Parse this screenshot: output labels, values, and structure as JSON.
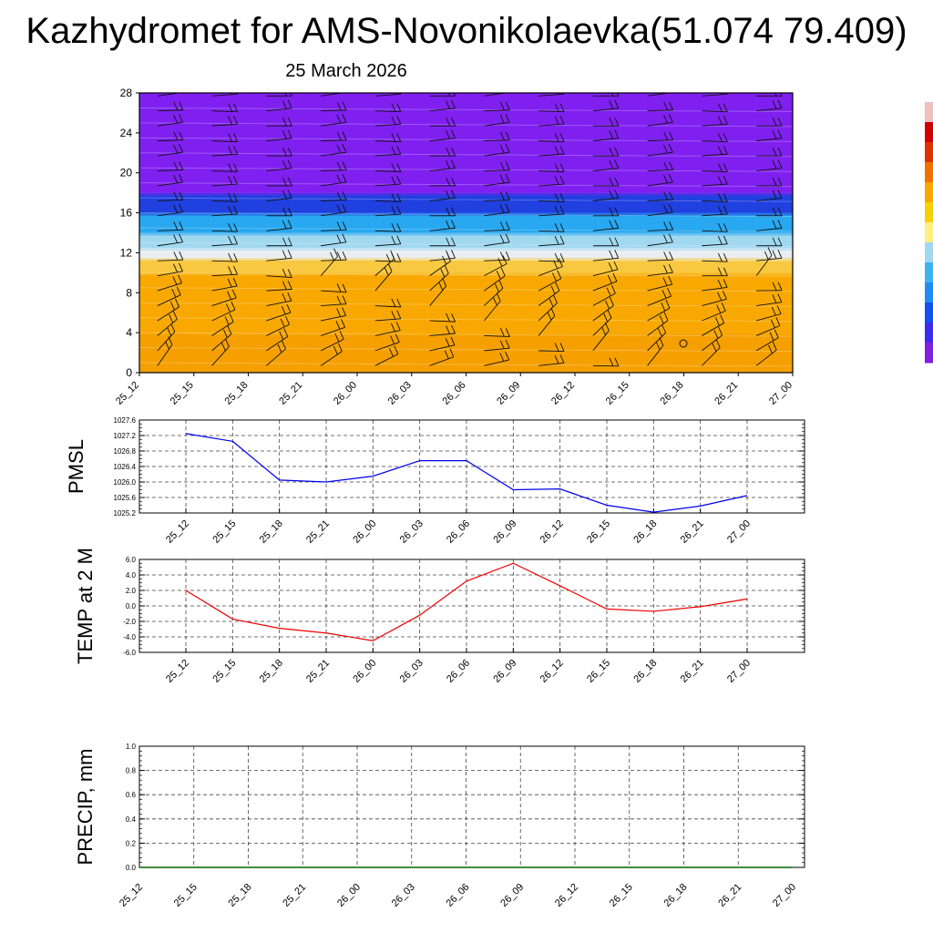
{
  "header": {
    "title": "Kazhydromet for AMS-Novonikolaevka(51.074 79.409)",
    "date": "25 March 2026"
  },
  "time_labels": [
    "25_12",
    "25_15",
    "25_18",
    "25_21",
    "26_00",
    "26_03",
    "26_06",
    "26_09",
    "26_12",
    "26_15",
    "26_18",
    "26_21",
    "27_00"
  ],
  "chart_data": [
    {
      "type": "heatmap",
      "name": "vertical cross-section with wind barbs",
      "categories": [
        "25_12",
        "25_15",
        "25_18",
        "25_21",
        "26_00",
        "26_03",
        "26_06",
        "26_09",
        "26_12",
        "26_15",
        "26_18",
        "26_21",
        "27_00"
      ],
      "ylim": [
        0,
        28
      ],
      "yticks": [
        0,
        4,
        8,
        12,
        16,
        20,
        24,
        28
      ],
      "layers": [
        {
          "from": 0,
          "to": 4,
          "color": "#f5a000"
        },
        {
          "from": 4,
          "to": 10,
          "color": "#f8a800"
        },
        {
          "from": 10,
          "to": 11.5,
          "color": "#f8c840"
        },
        {
          "from": 11.5,
          "to": 12.5,
          "color": "#e8eef2"
        },
        {
          "from": 12.5,
          "to": 14,
          "color": "#a0d8f0"
        },
        {
          "from": 14,
          "to": 16,
          "color": "#28a8f0"
        },
        {
          "from": 16,
          "to": 18,
          "color": "#2040e0"
        },
        {
          "from": 18,
          "to": 28,
          "color": "#8020f0"
        }
      ],
      "colorbar": [
        "#7f1fe0",
        "#3a2cf0",
        "#1450f0",
        "#1e8cf0",
        "#3cb4f0",
        "#a0d8f0",
        "#fff080",
        "#f8d000",
        "#f8a800",
        "#f07000",
        "#e03000",
        "#d00000",
        "#f0c0c0"
      ],
      "gridlines": false
    },
    {
      "type": "line",
      "ylabel": "PMSL",
      "x": [
        "25_12",
        "25_15",
        "25_18",
        "25_21",
        "26_00",
        "26_03",
        "26_06",
        "26_09",
        "26_12",
        "26_15",
        "26_18",
        "26_21",
        "27_00"
      ],
      "values": [
        1027.25,
        1027.05,
        1026.05,
        1026.0,
        1026.15,
        1026.55,
        1026.55,
        1025.8,
        1025.82,
        1025.4,
        1025.22,
        1025.38,
        1025.65
      ],
      "ylim": [
        1025.2,
        1027.6
      ],
      "yticks": [
        "1025.2",
        "1025.6",
        "1026.0",
        "1026.4",
        "1026.8",
        "1027.2",
        "1027.6"
      ],
      "color": "#0000ee",
      "grid": true
    },
    {
      "type": "line",
      "ylabel": "TEMP at 2 M",
      "x": [
        "25_12",
        "25_15",
        "25_18",
        "25_21",
        "26_00",
        "26_03",
        "26_06",
        "26_09",
        "26_12",
        "26_15",
        "26_18",
        "26_21",
        "27_00"
      ],
      "values": [
        2.0,
        -1.7,
        -2.9,
        -3.5,
        -4.5,
        -1.2,
        3.2,
        5.5,
        2.6,
        -0.4,
        -0.7,
        -0.1,
        0.9
      ],
      "ylim": [
        -6.0,
        6.0
      ],
      "yticks": [
        "-6.0",
        "-4.0",
        "-2.0",
        "0.0",
        "2.0",
        "4.0",
        "6.0"
      ],
      "color": "#ee0000",
      "grid": true
    },
    {
      "type": "line",
      "ylabel": "PRECIP, mm",
      "x": [
        "25_12",
        "25_15",
        "25_18",
        "25_21",
        "26_00",
        "26_03",
        "26_06",
        "26_09",
        "26_12",
        "26_15",
        "26_18",
        "26_21",
        "27_00"
      ],
      "values": [
        0,
        0,
        0,
        0,
        0,
        0,
        0,
        0,
        0,
        0,
        0,
        0,
        0
      ],
      "ylim": [
        0.0,
        1.0
      ],
      "yticks": [
        "0.0",
        "0.2",
        "0.4",
        "0.6",
        "0.8",
        "1.0"
      ],
      "color": "#006600",
      "grid": true
    }
  ]
}
